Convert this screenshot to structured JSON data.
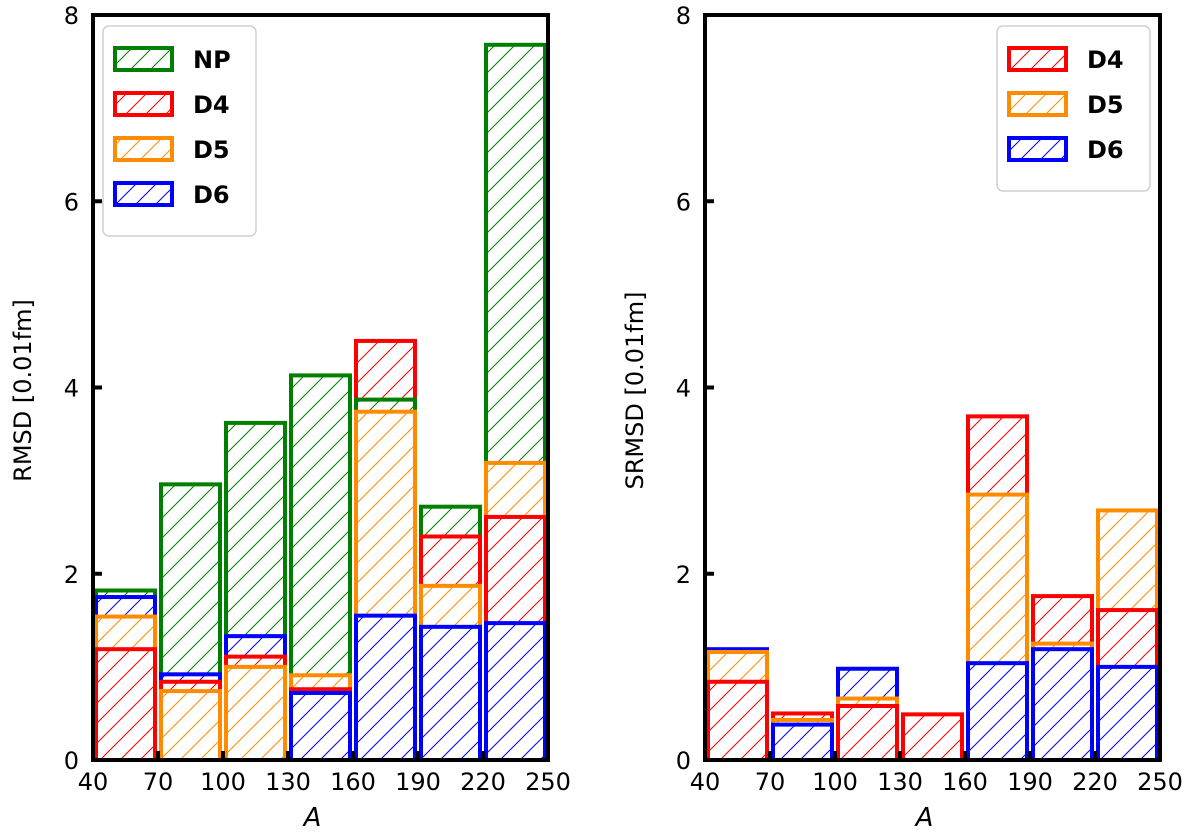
{
  "chart_data": [
    {
      "type": "bar",
      "style": "overlaid hatched histogram bars",
      "x": {
        "bin_edges": [
          40,
          70,
          100,
          130,
          160,
          190,
          220,
          250
        ],
        "ticks": [
          40,
          70,
          100,
          130,
          160,
          190,
          220,
          250
        ],
        "label": "A"
      },
      "y": {
        "lim": [
          0,
          8
        ],
        "ticks": [
          0,
          2,
          4,
          6,
          8
        ],
        "label": "RMSD [0.01fm]"
      },
      "legend": {
        "placement": "top-left"
      },
      "series": [
        {
          "name": "NP",
          "color": "#008000",
          "values": [
            1.82,
            2.96,
            3.62,
            4.13,
            3.87,
            2.72,
            7.68
          ]
        },
        {
          "name": "D4",
          "color": "#ff0000",
          "values": [
            1.19,
            0.84,
            1.11,
            0.76,
            4.5,
            2.4,
            2.61
          ]
        },
        {
          "name": "D5",
          "color": "#ff8c00",
          "values": [
            1.54,
            0.74,
            1.0,
            0.91,
            3.74,
            1.87,
            3.19
          ]
        },
        {
          "name": "D6",
          "color": "#0000ff",
          "values": [
            1.75,
            0.92,
            1.33,
            0.72,
            1.55,
            1.43,
            1.47
          ]
        }
      ]
    },
    {
      "type": "bar",
      "style": "overlaid hatched histogram bars",
      "x": {
        "bin_edges": [
          40,
          70,
          100,
          130,
          160,
          190,
          220,
          250
        ],
        "ticks": [
          40,
          70,
          100,
          130,
          160,
          190,
          220,
          250
        ],
        "label": "A"
      },
      "y": {
        "lim": [
          0,
          8
        ],
        "ticks": [
          0,
          2,
          4,
          6,
          8
        ],
        "label": "SRMSD [0.01fm]"
      },
      "legend": {
        "placement": "top-right"
      },
      "series": [
        {
          "name": "D4",
          "color": "#ff0000",
          "values": [
            0.84,
            0.5,
            0.58,
            0.49,
            3.69,
            1.76,
            1.61
          ]
        },
        {
          "name": "D5",
          "color": "#ff8c00",
          "values": [
            1.16,
            0.43,
            0.66,
            0.0,
            2.85,
            1.25,
            2.68
          ]
        },
        {
          "name": "D6",
          "color": "#0000ff",
          "values": [
            1.19,
            0.38,
            0.98,
            0.0,
            1.04,
            1.19,
            1.0
          ]
        }
      ]
    }
  ]
}
